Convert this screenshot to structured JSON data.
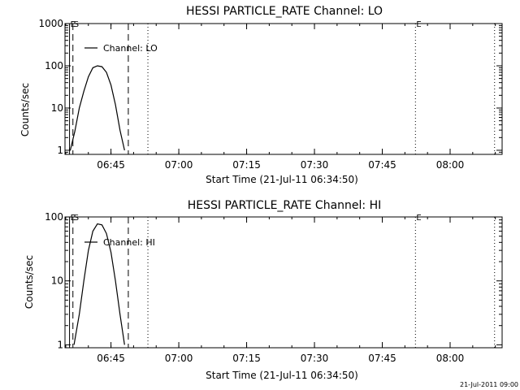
{
  "footer_text": "21-Jul-2011 09:00",
  "chart_data": [
    {
      "type": "line",
      "title": "HESSI PARTICLE_RATE Channel: LO",
      "xlabel": "Start Time (21-Jul-11 06:34:50)",
      "ylabel": "Counts/sec",
      "y_scale": "log",
      "ylim": [
        0.8,
        1000
      ],
      "xlim": [
        "06:34:50",
        "08:11:30"
      ],
      "x_ticks": [
        "06:45",
        "07:00",
        "07:15",
        "07:30",
        "07:45",
        "08:00"
      ],
      "y_ticks": [
        "1",
        "10",
        "100",
        "1000"
      ],
      "grid": false,
      "legend_position": "top-left",
      "series": [
        {
          "name": "Channel: LO",
          "x": [
            "06:36:00",
            "06:37:00",
            "06:38:00",
            "06:39:00",
            "06:40:00",
            "06:41:00",
            "06:42:00",
            "06:43:00",
            "06:44:00",
            "06:45:00",
            "06:46:00",
            "06:47:00",
            "06:48:00"
          ],
          "y": [
            1.0,
            2.8,
            10,
            25,
            55,
            90,
            100,
            95,
            70,
            35,
            12,
            3,
            1.0
          ]
        }
      ],
      "annotations": [
        {
          "label": "E",
          "x": "06:35:50",
          "style": "solid"
        },
        {
          "label": "S",
          "x": "06:36:35",
          "style": "dashed"
        },
        {
          "label": "",
          "x": "06:48:50",
          "style": "dashed"
        },
        {
          "label": "",
          "x": "06:53:10",
          "style": "dotted"
        },
        {
          "label": "E",
          "x": "07:52:20",
          "style": "dotted"
        },
        {
          "label": "",
          "x": "08:09:50",
          "style": "dotted"
        }
      ]
    },
    {
      "type": "line",
      "title": "HESSI PARTICLE_RATE Channel: HI",
      "xlabel": "Start Time (21-Jul-11 06:34:50)",
      "ylabel": "Counts/sec",
      "y_scale": "log",
      "ylim": [
        0.9,
        100
      ],
      "xlim": [
        "06:34:50",
        "08:11:30"
      ],
      "x_ticks": [
        "06:45",
        "07:00",
        "07:15",
        "07:30",
        "07:45",
        "08:00"
      ],
      "y_ticks": [
        "1",
        "10",
        "100"
      ],
      "grid": false,
      "legend_position": "top-left",
      "series": [
        {
          "name": "Channel: HI",
          "x": [
            "06:36:50",
            "06:38:00",
            "06:39:00",
            "06:40:00",
            "06:41:00",
            "06:42:00",
            "06:43:00",
            "06:44:00",
            "06:45:00",
            "06:46:00",
            "06:47:00",
            "06:48:00"
          ],
          "y": [
            1.0,
            3,
            10,
            30,
            60,
            78,
            75,
            55,
            28,
            10,
            3,
            1.0
          ]
        }
      ],
      "annotations": [
        {
          "label": "E",
          "x": "06:35:50",
          "style": "solid"
        },
        {
          "label": "S",
          "x": "06:36:35",
          "style": "dashed"
        },
        {
          "label": "",
          "x": "06:48:50",
          "style": "dashed"
        },
        {
          "label": "",
          "x": "06:53:10",
          "style": "dotted"
        },
        {
          "label": "E",
          "x": "07:52:20",
          "style": "dotted"
        },
        {
          "label": "",
          "x": "08:09:50",
          "style": "dotted"
        }
      ]
    }
  ]
}
